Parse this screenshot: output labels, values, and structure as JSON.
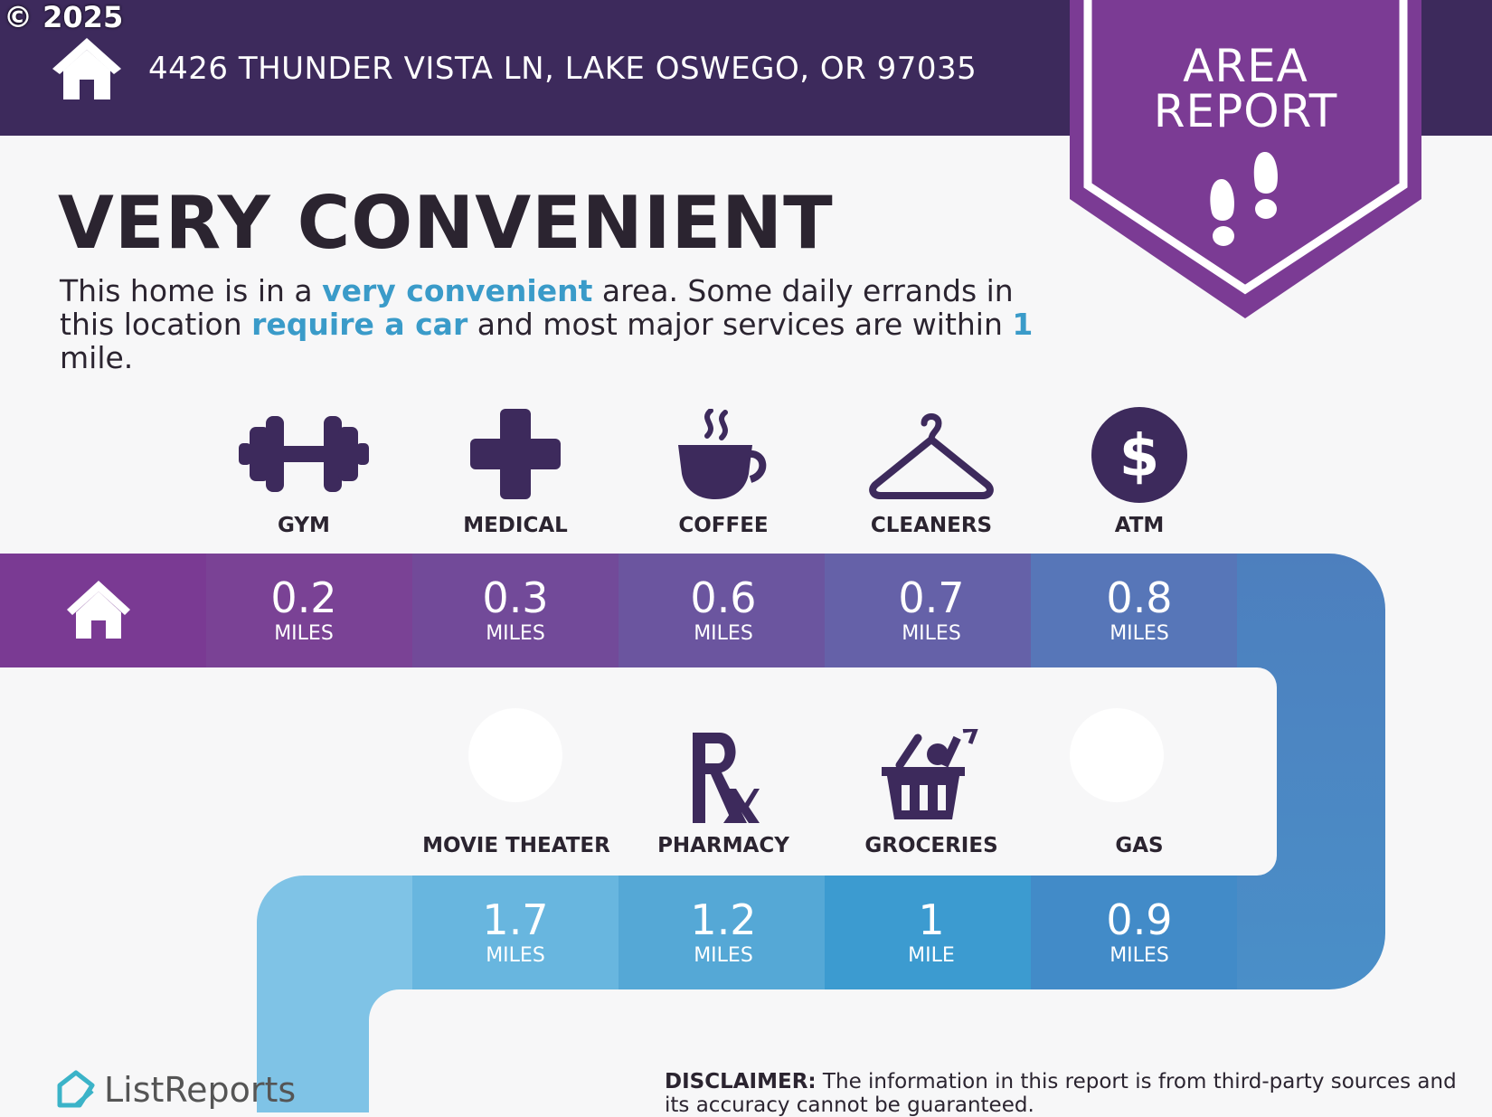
{
  "copyright": "© 2025",
  "header": {
    "address": "4426 THUNDER VISTA LN, LAKE OSWEGO, OR 97035",
    "badge_line1": "AREA",
    "badge_line2": "REPORT"
  },
  "headline": "VERY CONVENIENT",
  "description": {
    "p1": "This home is in a ",
    "h1": "very convenient",
    "p2": " area. Some daily errands in this location ",
    "h2": "require a car",
    "p3": " and most major services are within ",
    "h3": "1",
    "p4": " mile."
  },
  "row1": [
    {
      "label": "GYM",
      "distance": "0.2",
      "unit": "MILES",
      "icon": "dumbbell-icon"
    },
    {
      "label": "MEDICAL",
      "distance": "0.3",
      "unit": "MILES",
      "icon": "medical-cross-icon"
    },
    {
      "label": "COFFEE",
      "distance": "0.6",
      "unit": "MILES",
      "icon": "coffee-cup-icon"
    },
    {
      "label": "CLEANERS",
      "distance": "0.7",
      "unit": "MILES",
      "icon": "hanger-icon"
    },
    {
      "label": "ATM",
      "distance": "0.8",
      "unit": "MILES",
      "icon": "dollar-icon"
    }
  ],
  "row2": [
    {
      "label": "MOVIE THEATER",
      "distance": "1.7",
      "unit": "MILES",
      "icon": "movie-icon"
    },
    {
      "label": "PHARMACY",
      "distance": "1.2",
      "unit": "MILES",
      "icon": "rx-icon"
    },
    {
      "label": "GROCERIES",
      "distance": "1",
      "unit": "MILE",
      "icon": "basket-icon"
    },
    {
      "label": "GAS",
      "distance": "0.9",
      "unit": "MILES",
      "icon": "gas-icon"
    }
  ],
  "footer": {
    "brand": "ListReports",
    "disclaimer_label": "DISCLAIMER:",
    "disclaimer_text": " The information in this report is from third-party sources and its accuracy cannot be guaranteed."
  },
  "colors": {
    "header": "#3d2a5c",
    "badge": "#7b3b94",
    "icon": "#3d2a5c",
    "highlight": "#3a9bc9"
  }
}
